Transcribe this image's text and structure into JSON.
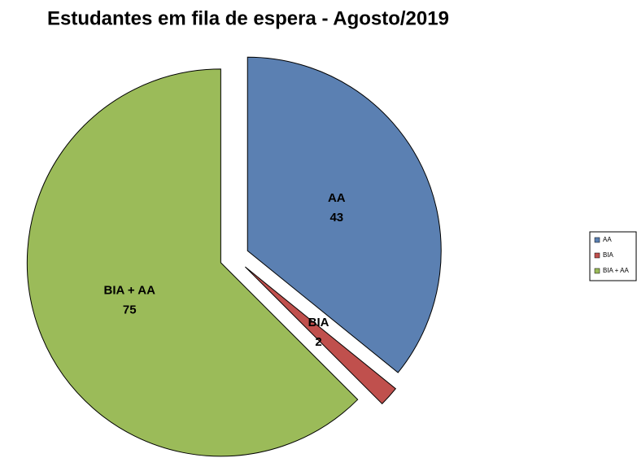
{
  "chart_data": {
    "type": "pie",
    "title": "Estudantes em fila de espera - Agosto/2019",
    "categories": [
      "AA",
      "BIA",
      "BIA + AA"
    ],
    "values": [
      43,
      2,
      75
    ],
    "colors": [
      "#5b80b2",
      "#c0504d",
      "#9bbb59"
    ],
    "legend": "right"
  }
}
